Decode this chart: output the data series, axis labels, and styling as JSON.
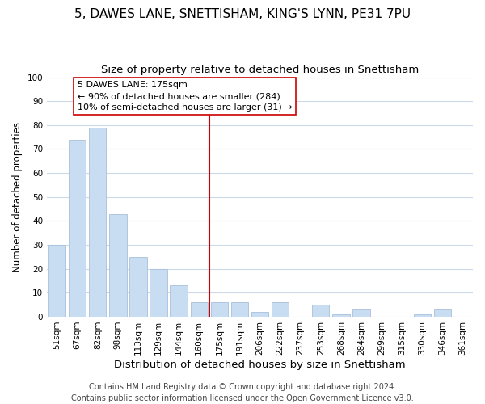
{
  "title1": "5, DAWES LANE, SNETTISHAM, KING'S LYNN, PE31 7PU",
  "title2": "Size of property relative to detached houses in Snettisham",
  "xlabel": "Distribution of detached houses by size in Snettisham",
  "ylabel": "Number of detached properties",
  "bar_labels": [
    "51sqm",
    "67sqm",
    "82sqm",
    "98sqm",
    "113sqm",
    "129sqm",
    "144sqm",
    "160sqm",
    "175sqm",
    "191sqm",
    "206sqm",
    "222sqm",
    "237sqm",
    "253sqm",
    "268sqm",
    "284sqm",
    "299sqm",
    "315sqm",
    "330sqm",
    "346sqm",
    "361sqm"
  ],
  "bar_values": [
    30,
    74,
    79,
    43,
    25,
    20,
    13,
    6,
    6,
    6,
    2,
    6,
    0,
    5,
    1,
    3,
    0,
    0,
    1,
    3,
    0
  ],
  "bar_color": "#c9ddf2",
  "bar_edge_color": "#a8c0dc",
  "vline_color": "#cc0000",
  "annotation_title": "5 DAWES LANE: 175sqm",
  "annotation_line1": "← 90% of detached houses are smaller (284)",
  "annotation_line2": "10% of semi-detached houses are larger (31) →",
  "annotation_box_color": "#ffffff",
  "annotation_box_edge": "#cc0000",
  "ylim": [
    0,
    100
  ],
  "yticks": [
    0,
    10,
    20,
    30,
    40,
    50,
    60,
    70,
    80,
    90,
    100
  ],
  "footer1": "Contains HM Land Registry data © Crown copyright and database right 2024.",
  "footer2": "Contains public sector information licensed under the Open Government Licence v3.0.",
  "title1_fontsize": 11,
  "title2_fontsize": 9.5,
  "xlabel_fontsize": 9.5,
  "ylabel_fontsize": 8.5,
  "tick_fontsize": 7.5,
  "annotation_fontsize": 8,
  "footer_fontsize": 7,
  "background_color": "#ffffff",
  "grid_color": "#ccd9e8"
}
